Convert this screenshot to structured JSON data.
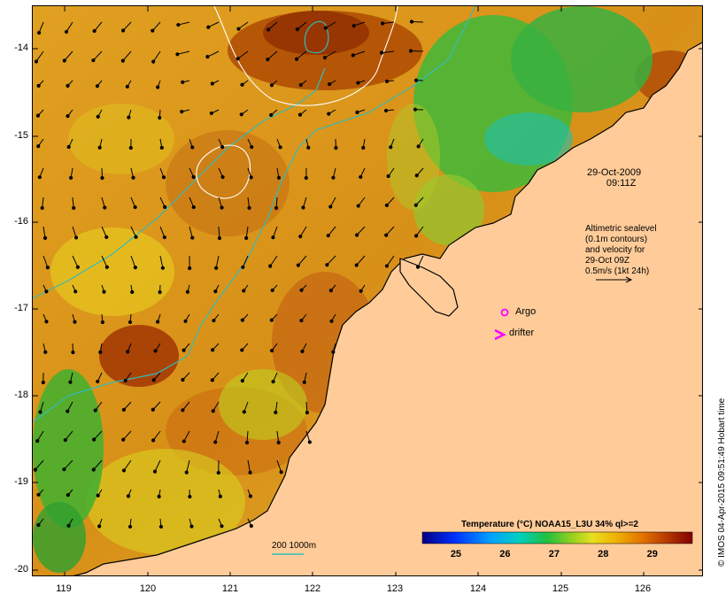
{
  "map": {
    "date_line1": "29-Oct-2009",
    "date_line2": "09:11Z",
    "altimetry_lines": [
      "Altimetric sealevel",
      "(0.1m contours)",
      "and velocity for",
      "29-Oct 09Z",
      "0.5m/s (1kt 24h)"
    ],
    "argo_label": "Argo",
    "drifter_label": "drifter",
    "isobath_label": "200  1000m",
    "credit": "© IMOS 04-Apr-2015 09:51:49 Hobart time",
    "lat_labels": [
      "-14",
      "-15",
      "-16",
      "-17",
      "-18",
      "-19",
      "-20"
    ],
    "lon_labels": [
      "119",
      "120",
      "121",
      "122",
      "123",
      "124",
      "125",
      "126"
    ],
    "colors": {
      "land": "#ffcc99",
      "isobath": "#33bbbb",
      "sealevel_contour": "#ffffff",
      "argo": "#ff00ff",
      "drifter": "#ff00ff"
    }
  },
  "colorbar": {
    "title": "Temperature (°C) NOAA15_L3U 34% ql>=2",
    "ticks": [
      "25",
      "26",
      "27",
      "28",
      "29"
    ],
    "range": [
      24.3,
      29.8
    ]
  }
}
